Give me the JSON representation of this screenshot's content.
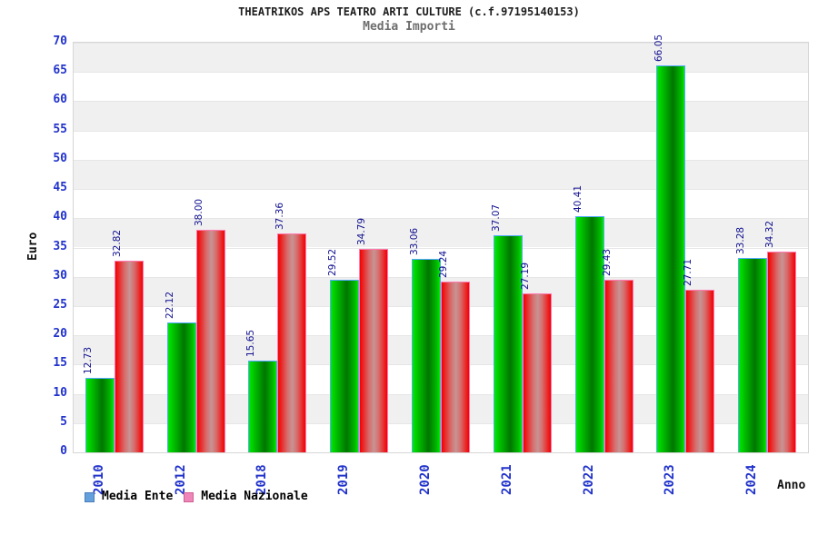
{
  "title": "THEATRIKOS APS TEATRO ARTI CULTURE (c.f.97195140153)",
  "subtitle": "Media Importi",
  "chart_data": {
    "type": "bar",
    "categories": [
      "2010",
      "2012",
      "2018",
      "2019",
      "2020",
      "2021",
      "2022",
      "2023",
      "2024"
    ],
    "series": [
      {
        "name": "Media Ente",
        "values": [
          12.73,
          22.12,
          15.65,
          29.52,
          33.06,
          37.07,
          40.41,
          66.05,
          33.28
        ],
        "labels": [
          "12.73",
          "22.12",
          "15.65",
          "29.52",
          "33.06",
          "37.07",
          "40.41",
          "66.05",
          "33.28"
        ]
      },
      {
        "name": "Media Nazionale",
        "values": [
          32.82,
          38.0,
          37.36,
          34.79,
          29.24,
          27.19,
          29.43,
          27.71,
          34.32
        ],
        "labels": [
          "32.82",
          "38.00",
          "37.36",
          "34.79",
          "29.24",
          "27.19",
          "29.43",
          "27.71",
          "34.32"
        ]
      }
    ],
    "title": "THEATRIKOS APS TEATRO ARTI CULTURE (c.f.97195140153)",
    "subtitle": "Media Importi",
    "xlabel": "Anno",
    "ylabel": "Euro",
    "ylim": [
      0,
      70
    ],
    "ytick_step": 5,
    "grid": "alternating-horizontal-bands",
    "legend_position": "bottom-left",
    "value_labels_rotation": -90,
    "xtick_rotation": -90
  },
  "legend": [
    {
      "label": "Media Ente",
      "fill": "#63a0dc",
      "border": "#4a7ebb"
    },
    {
      "label": "Media Nazionale",
      "fill": "#ef85b8",
      "border": "#d05f93"
    }
  ],
  "colors": {
    "bar_ente_edge": "#00ea00",
    "bar_ente_mid": "#007600",
    "bar_ente_border": "#55aaff",
    "bar_naz_edge": "#f40000",
    "bar_naz_mid": "#c79494",
    "bar_naz_border": "#ff7ab0",
    "tick_label": "#2233cc",
    "value_label": "#101090",
    "band_gray": "#f0f0f0",
    "band_white": "#ffffff"
  }
}
